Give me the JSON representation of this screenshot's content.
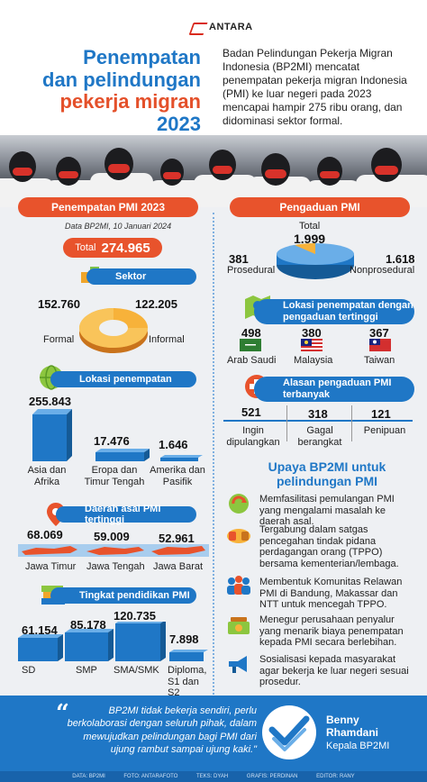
{
  "brand": "ANTARA",
  "title": {
    "l1": "Penempatan",
    "l2": "dan pelindungan",
    "l3": "pekerja migran",
    "l4": "2023"
  },
  "intro": "Badan Pelindungan Pekerja Migran Indonesia (BP2MI) mencatat penempatan pekerja migran Indonesia (PMI) ke luar negeri pada 2023 mencapai hampir 275 ribu orang, dan didominasi sektor formal.",
  "left": {
    "header": "Penempatan PMI 2023",
    "source": "Data BP2MI, 10 Januari 2024",
    "total_label": "Total",
    "total_value": "274.965",
    "sektor": {
      "title": "Sektor",
      "formal_value": "152.760",
      "formal_label": "Formal",
      "informal_value": "122.205",
      "informal_label": "Informal"
    },
    "lokasi": {
      "title": "Lokasi penempatan",
      "items": [
        {
          "value": "255.843",
          "label": "Asia dan Afrika"
        },
        {
          "value": "17.476",
          "label": "Eropa dan Timur Tengah"
        },
        {
          "value": "1.646",
          "label": "Amerika dan Pasifik"
        }
      ]
    },
    "daerah": {
      "title": "Daerah asal PMI tertinggi",
      "items": [
        {
          "value": "68.069",
          "label": "Jawa Timur"
        },
        {
          "value": "59.009",
          "label": "Jawa Tengah"
        },
        {
          "value": "52.961",
          "label": "Jawa Barat"
        }
      ]
    },
    "pendidikan": {
      "title": "Tingkat pendidikan PMI",
      "items": [
        {
          "value": "61.154",
          "label": "SD"
        },
        {
          "value": "85.178",
          "label": "SMP"
        },
        {
          "value": "120.735",
          "label": "SMA/SMK"
        },
        {
          "value": "7.898",
          "label": "Diploma, S1 dan S2"
        }
      ]
    }
  },
  "right": {
    "header": "Pengaduan PMI",
    "total_label": "Total",
    "total_value": "1.999",
    "prosedural_value": "381",
    "prosedural_label": "Prosedural",
    "nonprosedural_value": "1.618",
    "nonprosedural_label": "Nonprosedural",
    "lokasi": {
      "title": "Lokasi penempatan dengan pengaduan tertinggi",
      "items": [
        {
          "value": "498",
          "label": "Arab Saudi"
        },
        {
          "value": "380",
          "label": "Malaysia"
        },
        {
          "value": "367",
          "label": "Taiwan"
        }
      ]
    },
    "alasan": {
      "title": "Alasan pengaduan PMI terbanyak",
      "items": [
        {
          "value": "521",
          "label": "Ingin dipulangkan"
        },
        {
          "value": "318",
          "label": "Gagal berangkat"
        },
        {
          "value": "121",
          "label": "Penipuan"
        }
      ]
    },
    "upaya": {
      "title": "Upaya BP2MI untuk pelindungan PMI",
      "items": [
        "Memfasilitasi pemulangan PMI yang mengalami masalah ke daerah asal.",
        "Tergabung dalam satgas pencegahan tindak pidana perdagangan orang (TPPO) bersama kementerian/lembaga.",
        "Membentuk Komunitas Relawan PMI di Bandung, Makassar dan NTT untuk mencegah TPPO.",
        "Menegur perusahaan penyalur yang menarik biaya penempatan kepada PMI secara berlebihan.",
        "Sosialisasi kepada masyarakat agar bekerja ke luar negeri sesuai prosedur."
      ]
    }
  },
  "quote": {
    "text": "BP2MI tidak bekerja sendiri, perlu berkolaborasi dengan seluruh pihak, dalam mewujudkan pelindungan bagi PMI dari ujung rambut sampai ujung kaki.\"",
    "name_line1": "Benny",
    "name_line2": "Rhamdani",
    "role": "Kepala BP2MI"
  },
  "footer": {
    "data": "DATA: BP2MI",
    "foto": "FOTO: ANTARAFOTO",
    "teks": "TEKS: DYAH",
    "grafis": "GRAFIS: PERDINAN",
    "editor": "EDITOR: RANY"
  },
  "colors": {
    "blue": "#1f77c6",
    "orange": "#e8532c",
    "dark_blue": "#1863ab"
  }
}
